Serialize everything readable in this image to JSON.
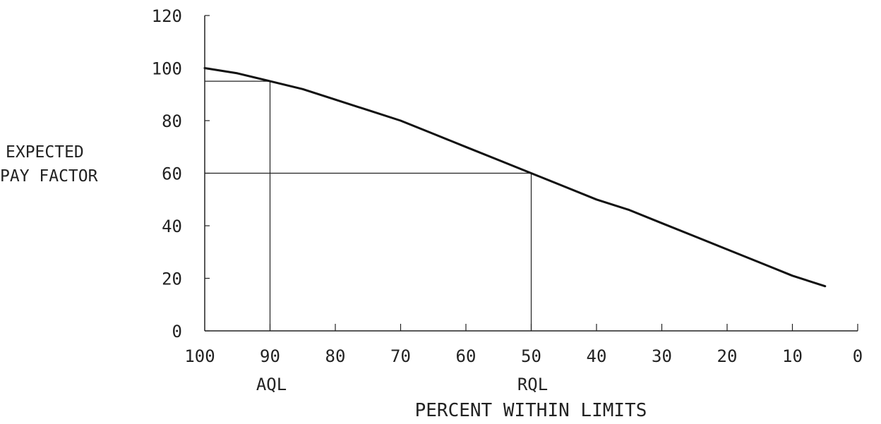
{
  "chart_data": {
    "type": "line",
    "title": "",
    "xlabel": "PERCENT WITHIN LIMITS",
    "ylabel": "EXPECTED PAY FACTOR",
    "ylabel_lines": [
      "EXPECTED",
      "PAY FACTOR"
    ],
    "x_reversed": true,
    "xlim": [
      100,
      0
    ],
    "ylim": [
      0,
      120
    ],
    "x_ticks": [
      100,
      90,
      80,
      70,
      60,
      50,
      40,
      30,
      20,
      10,
      0
    ],
    "y_ticks": [
      0,
      20,
      40,
      60,
      80,
      100,
      120
    ],
    "grid": false,
    "series": [
      {
        "x": [
          100,
          95,
          90,
          85,
          80,
          75,
          70,
          65,
          60,
          55,
          50,
          45,
          40,
          35,
          30,
          25,
          20,
          15,
          10,
          5
        ],
        "y": [
          100,
          98,
          95,
          92,
          88,
          84,
          80,
          75,
          70,
          65,
          60,
          55,
          50,
          46,
          41,
          36,
          31,
          26,
          21,
          17
        ]
      }
    ],
    "reference_points": [
      {
        "x": 90,
        "y": 95,
        "label": "AQL"
      },
      {
        "x": 50,
        "y": 60,
        "label": "RQL"
      }
    ]
  }
}
